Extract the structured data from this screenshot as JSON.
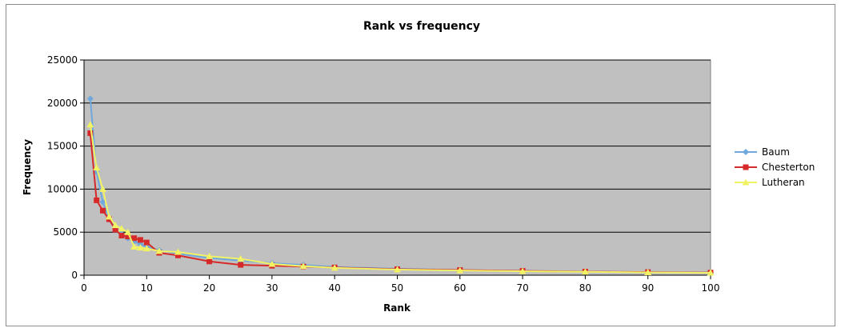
{
  "chart_data": {
    "type": "line",
    "title": "Rank vs frequency",
    "xlabel": "Rank",
    "ylabel": "Frequency",
    "xlim": [
      0,
      100
    ],
    "ylim": [
      0,
      25000
    ],
    "x_ticks": [
      0,
      10,
      20,
      30,
      40,
      50,
      60,
      70,
      80,
      90,
      100
    ],
    "y_ticks": [
      0,
      5000,
      10000,
      15000,
      20000,
      25000
    ],
    "grid": "horizontal",
    "plot_background": "#c0c0c0",
    "legend_position": "right",
    "series": [
      {
        "name": "Baum",
        "color": "#6fa8dc",
        "marker": "diamond",
        "x": [
          1,
          2,
          3,
          4,
          5,
          6,
          7,
          8,
          9,
          10,
          12,
          15,
          20,
          25,
          30,
          35,
          40,
          50,
          60,
          70,
          80,
          90,
          100
        ],
        "y": [
          20500,
          12000,
          8500,
          6500,
          5500,
          4800,
          4300,
          3900,
          3600,
          3300,
          2900,
          2500,
          2000,
          1700,
          1400,
          1200,
          950,
          750,
          600,
          500,
          420,
          360,
          320
        ]
      },
      {
        "name": "Chesterton",
        "color": "#d62a2a",
        "marker": "square",
        "x": [
          1,
          2,
          3,
          4,
          5,
          6,
          7,
          8,
          9,
          10,
          12,
          15,
          20,
          25,
          30,
          35,
          40,
          50,
          60,
          70,
          80,
          90,
          100
        ],
        "y": [
          16500,
          8700,
          7500,
          6500,
          5300,
          4600,
          4500,
          4300,
          4100,
          3800,
          2600,
          2300,
          1600,
          1200,
          1100,
          1000,
          900,
          700,
          600,
          500,
          420,
          360,
          300
        ]
      },
      {
        "name": "Lutheran",
        "color": "#f2f266",
        "marker": "triangle",
        "x": [
          1,
          2,
          3,
          4,
          5,
          6,
          7,
          8,
          9,
          10,
          12,
          15,
          20,
          25,
          30,
          35,
          40,
          50,
          60,
          70,
          80,
          90,
          100
        ],
        "y": [
          17500,
          12500,
          10000,
          6800,
          5800,
          5400,
          5000,
          3300,
          3200,
          3100,
          2800,
          2700,
          2200,
          1900,
          1300,
          1050,
          850,
          650,
          550,
          450,
          390,
          330,
          280
        ]
      }
    ]
  }
}
